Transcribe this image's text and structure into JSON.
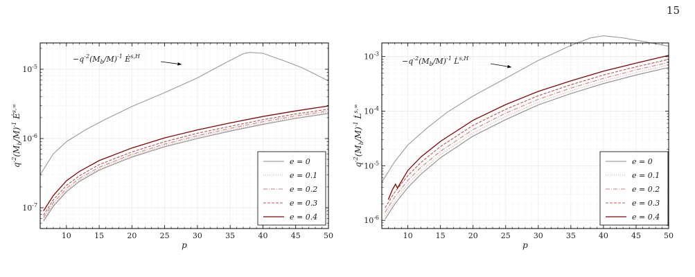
{
  "page_number": "15",
  "chart_data": [
    {
      "type": "line",
      "id": "energy",
      "ylabel": "q^{-2}(M_b/M)^{-1} Ė^{s,∞}",
      "xlabel": "p",
      "xlim": [
        6,
        50
      ],
      "ylim_log": [
        -7.3,
        -4.62
      ],
      "yscale": "log",
      "grid": true,
      "legend_position": "bottom-right",
      "xticks": [
        "10",
        "15",
        "20",
        "25",
        "30",
        "35",
        "40",
        "45",
        "50"
      ],
      "yticks": [
        {
          "value": 1e-07,
          "label": "10^-7"
        },
        {
          "value": 1e-06,
          "label": "10^-6"
        },
        {
          "value": 1e-05,
          "label": "10^-5"
        }
      ],
      "annotation": "−q^{-2}(M_b/M)^{-1} Ė^{s,H}",
      "horizon_series": {
        "x": [
          6,
          8,
          10,
          13,
          16,
          20,
          25,
          30,
          34,
          37,
          38,
          40,
          43,
          46,
          50
        ],
        "values": [
          3e-07,
          6e-07,
          9e-07,
          1.35e-06,
          1.9e-06,
          2.9e-06,
          4.6e-06,
          7.5e-06,
          1.2e-05,
          1.68e-05,
          1.75e-05,
          1.7e-05,
          1.35e-05,
          1.05e-05,
          6.8e-06
        ]
      },
      "series": [
        {
          "name": "e = 0",
          "color": "#8a8a8a",
          "dash": "solid",
          "x": [
            6.5,
            8,
            10,
            12,
            15,
            20,
            25,
            30,
            35,
            40,
            45,
            50
          ],
          "values": [
            6.4e-08,
            1.05e-07,
            1.7e-07,
            2.4e-07,
            3.5e-07,
            5.4e-07,
            7.6e-07,
            1e-06,
            1.28e-06,
            1.6e-06,
            1.95e-06,
            2.3e-06
          ]
        },
        {
          "name": "e = 0.1",
          "color": "#d99a9a",
          "dash": "1,2",
          "x": [
            6.5,
            8,
            10,
            12,
            15,
            20,
            25,
            30,
            35,
            40,
            45,
            50
          ],
          "values": [
            6.8e-08,
            1.1e-07,
            1.78e-07,
            2.5e-07,
            3.65e-07,
            5.6e-07,
            7.9e-07,
            1.05e-06,
            1.33e-06,
            1.66e-06,
            2.02e-06,
            2.4e-06
          ]
        },
        {
          "name": "e = 0.2",
          "color": "#d77a7a",
          "dash": "6,2,1,2",
          "x": [
            6.5,
            8,
            10,
            12,
            15,
            20,
            25,
            30,
            35,
            40,
            45,
            50
          ],
          "values": [
            7.2e-08,
            1.18e-07,
            1.9e-07,
            2.65e-07,
            3.85e-07,
            5.9e-07,
            8.3e-07,
            1.1e-06,
            1.4e-06,
            1.75e-06,
            2.12e-06,
            2.5e-06
          ]
        },
        {
          "name": "e = 0.3",
          "color": "#c0504d",
          "dash": "4,2",
          "x": [
            6.5,
            8,
            10,
            12,
            15,
            20,
            25,
            30,
            35,
            40,
            45,
            50
          ],
          "values": [
            7.8e-08,
            1.3e-07,
            2.1e-07,
            2.9e-07,
            4.2e-07,
            6.4e-07,
            9e-07,
            1.19e-06,
            1.5e-06,
            1.87e-06,
            2.26e-06,
            2.65e-06
          ]
        },
        {
          "name": "e = 0.4",
          "color": "#8b0000",
          "dash": "solid",
          "x": [
            6.5,
            8,
            10,
            12,
            15,
            20,
            25,
            30,
            35,
            40,
            45,
            50
          ],
          "values": [
            9e-08,
            1.5e-07,
            2.45e-07,
            3.35e-07,
            4.8e-07,
            7.3e-07,
            1.02e-06,
            1.33e-06,
            1.68e-06,
            2.08e-06,
            2.5e-06,
            2.95e-06
          ]
        }
      ]
    },
    {
      "type": "line",
      "id": "angular",
      "ylabel": "q^{-2}(M_b/M)^{-1} L̇^{s,∞}",
      "xlabel": "p",
      "xlim": [
        6,
        50
      ],
      "ylim_log": [
        -6.15,
        -2.75
      ],
      "yscale": "log",
      "grid": true,
      "legend_position": "bottom-right",
      "xticks": [
        "10",
        "15",
        "20",
        "25",
        "30",
        "35",
        "40",
        "45",
        "50"
      ],
      "yticks": [
        {
          "value": 1e-06,
          "label": "10^-6"
        },
        {
          "value": 1e-05,
          "label": "10^-5"
        },
        {
          "value": 0.0001,
          "label": "10^-4"
        },
        {
          "value": 0.001,
          "label": "10^-3"
        }
      ],
      "annotation": "−q^{-2}(M_b/M)^{-1} L̇^{s,H}",
      "horizon_series": {
        "x": [
          6,
          8,
          10,
          13,
          16,
          20,
          25,
          30,
          35,
          38,
          40,
          43,
          46,
          50
        ],
        "values": [
          5e-06,
          1.2e-05,
          2.4e-05,
          5e-05,
          9.5e-05,
          0.00019,
          0.0004,
          0.00085,
          0.0016,
          0.0022,
          0.0024,
          0.0022,
          0.0019,
          0.00155
        ]
      },
      "series": [
        {
          "name": "e = 0",
          "color": "#8a8a8a",
          "dash": "solid",
          "x": [
            6.5,
            8,
            10,
            12,
            15,
            20,
            25,
            30,
            35,
            40,
            45,
            50
          ],
          "values": [
            1.05e-06,
            2e-06,
            4e-06,
            7e-06,
            1.4e-05,
            3.5e-05,
            7e-05,
            0.00013,
            0.00021,
            0.00032,
            0.00046,
            0.00063
          ]
        },
        {
          "name": "e = 0.1",
          "color": "#d99a9a",
          "dash": "1,2",
          "x": [
            6.5,
            8,
            10,
            12,
            15,
            20,
            25,
            30,
            35,
            40,
            45,
            50
          ],
          "values": [
            1.2e-06,
            2.3e-06,
            4.6e-06,
            8e-06,
            1.6e-05,
            4e-05,
            8e-05,
            0.000145,
            0.000235,
            0.000355,
            0.00051,
            0.0007
          ]
        },
        {
          "name": "e = 0.2",
          "color": "#d77a7a",
          "dash": "6,2,1,2",
          "x": [
            6.5,
            8,
            10,
            12,
            15,
            20,
            25,
            30,
            35,
            40,
            45,
            50
          ],
          "values": [
            1.4e-06,
            2.7e-06,
            5.4e-06,
            9.4e-06,
            1.85e-05,
            4.6e-05,
            9.2e-05,
            0.000165,
            0.000265,
            0.0004,
            0.00057,
            0.00078
          ]
        },
        {
          "name": "e = 0.3",
          "color": "#c0504d",
          "dash": "4,2",
          "x": [
            6.5,
            8,
            10,
            12,
            15,
            20,
            25,
            30,
            35,
            40,
            45,
            50
          ],
          "values": [
            1.7e-06,
            3.3e-06,
            6.6e-06,
            1.15e-05,
            2.25e-05,
            5.5e-05,
            0.000108,
            0.000192,
            0.000305,
            0.00046,
            0.00065,
            0.00089
          ]
        },
        {
          "name": "e = 0.4",
          "color": "#8b0000",
          "dash": "solid",
          "x": [
            7,
            7.6,
            8.1,
            8.4,
            10,
            12,
            15,
            20,
            25,
            30,
            35,
            40,
            45,
            50
          ],
          "values": [
            2.4e-06,
            3.6e-06,
            4.6e-06,
            3.9e-06,
            8.2e-06,
            1.45e-05,
            2.8e-05,
            6.8e-05,
            0.000132,
            0.00023,
            0.00036,
            0.00054,
            0.00076,
            0.00105
          ]
        }
      ]
    }
  ]
}
